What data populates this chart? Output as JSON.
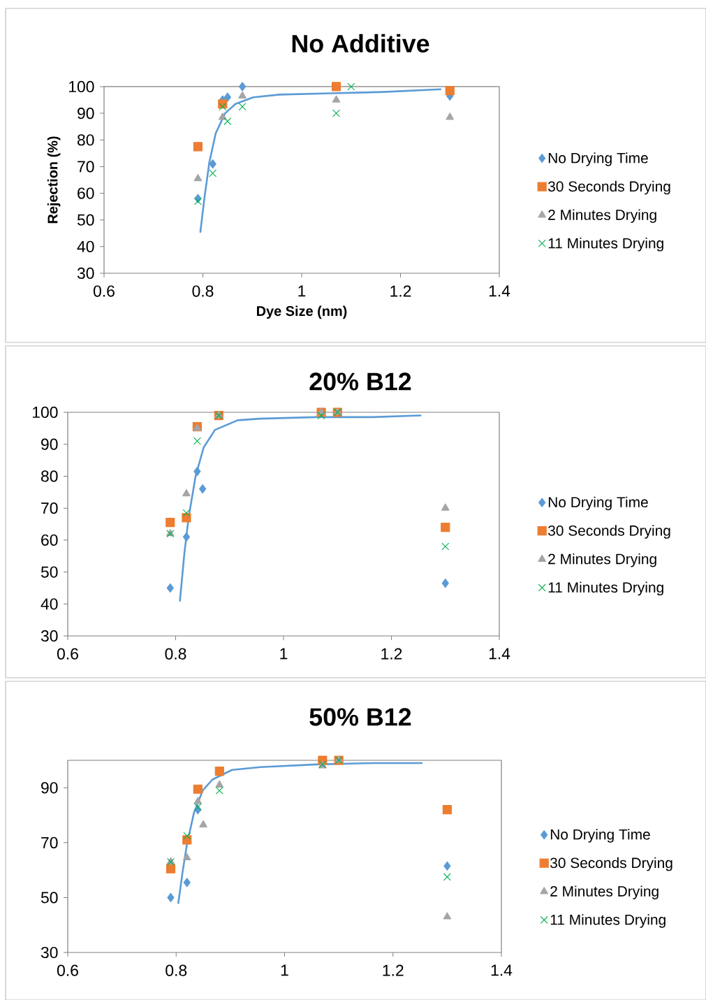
{
  "chart_data": [
    {
      "type": "scatter",
      "title": "No Additive",
      "xlabel": "Dye Size (nm)",
      "ylabel": "Rejection (%)",
      "xlim": [
        0.6,
        1.4
      ],
      "ylim": [
        30,
        100
      ],
      "xticks": [
        0.6,
        0.8,
        1,
        1.2,
        1.4
      ],
      "yticks": [
        30,
        40,
        50,
        60,
        70,
        80,
        90,
        100
      ],
      "legend": "right",
      "series": [
        {
          "name": "No Drying Time",
          "color": "#5b9bd5",
          "marker": "diamond",
          "x": [
            0.79,
            0.82,
            0.84,
            0.85,
            0.88,
            1.3
          ],
          "values": [
            58,
            71,
            95,
            96,
            100,
            96.5
          ]
        },
        {
          "name": "30 Seconds Drying",
          "color": "#ed7d31",
          "marker": "square",
          "x": [
            0.79,
            0.84,
            1.07,
            1.3
          ],
          "values": [
            77.5,
            93.5,
            100,
            98.5
          ]
        },
        {
          "name": "2 Minutes Drying",
          "color": "#a5a5a5",
          "marker": "triangle",
          "x": [
            0.79,
            0.84,
            0.88,
            1.07,
            1.3
          ],
          "values": [
            65.5,
            88.5,
            96.5,
            95,
            88.5
          ]
        },
        {
          "name": "11 Minutes Drying",
          "color": "#00b050",
          "marker": "cross",
          "x": [
            0.79,
            0.82,
            0.84,
            0.85,
            0.88,
            1.07,
            1.1
          ],
          "values": [
            57,
            67.5,
            92.5,
            87,
            92.5,
            90,
            100
          ]
        },
        {
          "type": "line",
          "color": "#5b9bd5",
          "marker": "none",
          "x": [
            0.795,
            0.803,
            0.813,
            0.826,
            0.845,
            0.866,
            0.902,
            0.955,
            1.059,
            1.165,
            1.281
          ],
          "values": [
            45.5,
            58,
            71.5,
            82.5,
            90,
            93.5,
            96,
            97,
            97.5,
            98,
            99
          ]
        }
      ]
    },
    {
      "type": "scatter",
      "title": "20% B12",
      "xlim": [
        0.6,
        1.4
      ],
      "ylim": [
        30,
        100
      ],
      "xticks": [
        0.6,
        0.8,
        1,
        1.2,
        1.4
      ],
      "yticks": [
        30,
        40,
        50,
        60,
        70,
        80,
        90,
        100
      ],
      "legend": "right",
      "series": [
        {
          "name": "No Drying Time",
          "color": "#5b9bd5",
          "marker": "diamond",
          "x": [
            0.79,
            0.82,
            0.84,
            0.85,
            1.3
          ],
          "values": [
            45,
            61,
            81.5,
            76,
            46.5
          ]
        },
        {
          "name": "30 Seconds Drying",
          "color": "#ed7d31",
          "marker": "square",
          "x": [
            0.79,
            0.82,
            0.84,
            0.88,
            1.07,
            1.1,
            1.3
          ],
          "values": [
            65.5,
            67,
            95.5,
            99,
            100,
            100,
            64
          ]
        },
        {
          "name": "2 Minutes Drying",
          "color": "#a5a5a5",
          "marker": "triangle",
          "x": [
            0.79,
            0.82,
            0.84,
            0.88,
            1.07,
            1.1,
            1.3
          ],
          "values": [
            62,
            74.5,
            95,
            99,
            100,
            100,
            70
          ]
        },
        {
          "name": "11 Minutes Drying",
          "color": "#00b050",
          "marker": "cross",
          "x": [
            0.79,
            0.82,
            0.84,
            0.88,
            1.07,
            1.1,
            1.3
          ],
          "values": [
            62,
            68.5,
            91,
            99,
            99,
            100,
            58
          ]
        },
        {
          "type": "line",
          "color": "#5b9bd5",
          "marker": "none",
          "x": [
            0.808,
            0.816,
            0.824,
            0.837,
            0.852,
            0.873,
            0.915,
            0.957,
            1.061,
            1.166,
            1.254
          ],
          "values": [
            41,
            55.5,
            67,
            80,
            89,
            94.5,
            97.5,
            98,
            98.5,
            98.5,
            99
          ]
        }
      ]
    },
    {
      "type": "scatter",
      "title": "50% B12",
      "xlim": [
        0.6,
        1.4
      ],
      "ylim": [
        30,
        100
      ],
      "xticks": [
        0.6,
        0.8,
        1,
        1.2,
        1.4
      ],
      "yticks": [
        30,
        50,
        70,
        90
      ],
      "legend": "right",
      "series": [
        {
          "name": "No Drying Time",
          "color": "#5b9bd5",
          "marker": "diamond",
          "x": [
            0.79,
            0.82,
            0.84,
            1.3
          ],
          "values": [
            50,
            55.5,
            82,
            61.5
          ]
        },
        {
          "name": "30 Seconds Drying",
          "color": "#ed7d31",
          "marker": "square",
          "x": [
            0.79,
            0.82,
            0.84,
            0.88,
            1.07,
            1.1,
            1.3
          ],
          "values": [
            60.5,
            71,
            89.5,
            96,
            100,
            100,
            82
          ]
        },
        {
          "name": "2 Minutes Drying",
          "color": "#a5a5a5",
          "marker": "triangle",
          "x": [
            0.79,
            0.82,
            0.84,
            0.85,
            0.88,
            1.07,
            1.1,
            1.3
          ],
          "values": [
            63,
            64.5,
            85,
            76.5,
            91,
            98,
            100,
            43
          ]
        },
        {
          "name": "11 Minutes Drying",
          "color": "#00b050",
          "marker": "cross",
          "x": [
            0.79,
            0.82,
            0.84,
            0.88,
            1.07,
            1.1,
            1.3
          ],
          "values": [
            63,
            72.5,
            83,
            89,
            98.5,
            100,
            57.5
          ]
        },
        {
          "type": "line",
          "color": "#5b9bd5",
          "marker": "none",
          "x": [
            0.804,
            0.812,
            0.82,
            0.833,
            0.849,
            0.867,
            0.903,
            0.955,
            1.059,
            1.163,
            1.253
          ],
          "values": [
            48,
            59.5,
            69.5,
            81,
            89,
            93,
            96.5,
            97.5,
            98.5,
            99,
            99
          ]
        }
      ]
    }
  ]
}
